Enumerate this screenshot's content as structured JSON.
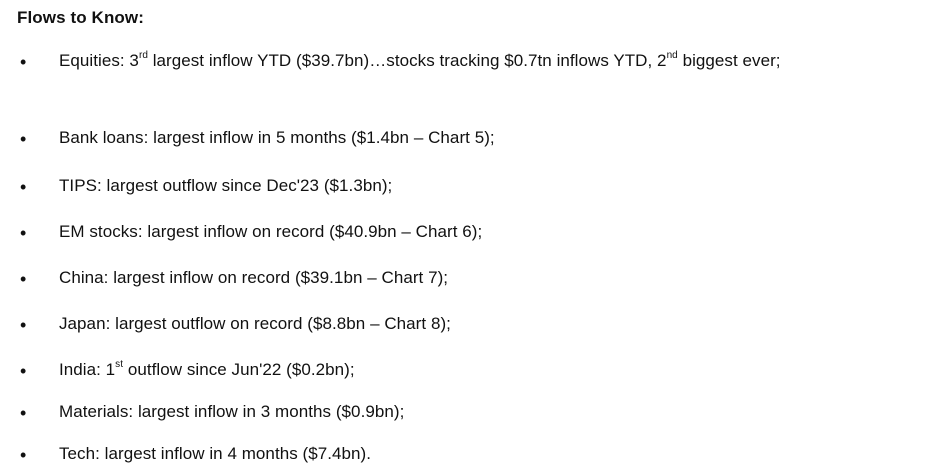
{
  "heading": "Flows to Know:",
  "bullet_glyph": "•",
  "items": [
    {
      "p1": "Equities: 3",
      "s1": "rd",
      "p2": " largest inflow YTD ($39.7bn)…stocks tracking $0.7tn inflows YTD, 2",
      "s2": "nd",
      "p3": " biggest ever;"
    },
    {
      "text": "Bank loans: largest inflow in 5 months ($1.4bn – Chart 5);"
    },
    {
      "text": "TIPS: largest outflow since Dec'23 ($1.3bn);"
    },
    {
      "text": "EM stocks: largest inflow on record ($40.9bn – Chart 6);"
    },
    {
      "text": "China: largest inflow on record ($39.1bn – Chart 7);"
    },
    {
      "text": "Japan: largest outflow on record ($8.8bn – Chart 8);"
    },
    {
      "p1": "India: 1",
      "s1": "st",
      "p2": " outflow since Jun'22 ($0.2bn);"
    },
    {
      "text": "Materials: largest inflow in 3 months ($0.9bn);"
    },
    {
      "text": "Tech: largest inflow in 4 months ($7.4bn)."
    }
  ]
}
